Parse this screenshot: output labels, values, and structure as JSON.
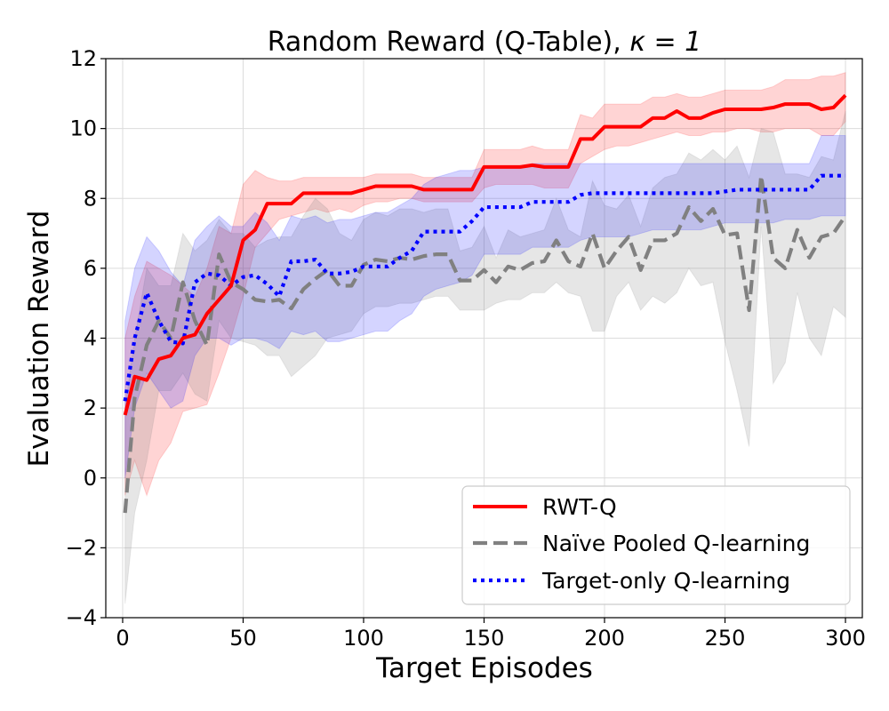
{
  "chart_data": {
    "type": "line",
    "title": "Random Reward (Q-Table), ",
    "title_math": "κ = 1",
    "xlabel": "Target Episodes",
    "ylabel": "Evaluation Reward",
    "xlim": [
      -7,
      307
    ],
    "ylim": [
      -4,
      12
    ],
    "xticks": [
      0,
      50,
      100,
      150,
      200,
      250,
      300
    ],
    "yticks": [
      -4,
      -2,
      0,
      2,
      4,
      6,
      8,
      10,
      12
    ],
    "ytick_labels": [
      "−4",
      "−2",
      "0",
      "2",
      "4",
      "6",
      "8",
      "10",
      "12"
    ],
    "grid": true,
    "legend_position": "lower-right",
    "series": [
      {
        "name": "RWT-Q",
        "color": "#ff0000",
        "style": "solid",
        "x": [
          1,
          5,
          10,
          15,
          20,
          25,
          30,
          35,
          40,
          45,
          50,
          55,
          60,
          65,
          70,
          75,
          80,
          85,
          90,
          95,
          100,
          105,
          110,
          115,
          120,
          125,
          130,
          135,
          140,
          145,
          150,
          155,
          160,
          165,
          170,
          175,
          180,
          185,
          190,
          195,
          200,
          205,
          210,
          215,
          220,
          225,
          230,
          235,
          240,
          245,
          250,
          255,
          260,
          265,
          270,
          275,
          280,
          285,
          290,
          295,
          300
        ],
        "y": [
          1.8,
          2.9,
          2.8,
          3.4,
          3.5,
          4.0,
          4.1,
          4.7,
          5.1,
          5.5,
          6.8,
          7.1,
          7.85,
          7.85,
          7.85,
          8.15,
          8.15,
          8.15,
          8.15,
          8.15,
          8.25,
          8.35,
          8.35,
          8.35,
          8.35,
          8.25,
          8.25,
          8.25,
          8.25,
          8.25,
          8.9,
          8.9,
          8.9,
          8.9,
          8.95,
          8.9,
          8.9,
          8.9,
          9.7,
          9.7,
          10.05,
          10.05,
          10.05,
          10.05,
          10.3,
          10.3,
          10.5,
          10.3,
          10.3,
          10.45,
          10.55,
          10.55,
          10.55,
          10.55,
          10.6,
          10.7,
          10.7,
          10.7,
          10.55,
          10.6,
          10.95
        ],
        "lower": [
          -0.5,
          0.5,
          -0.5,
          0.5,
          1.0,
          1.9,
          2.0,
          2.1,
          3.0,
          4.0,
          5.2,
          6.6,
          7.0,
          7.4,
          7.5,
          7.6,
          7.7,
          7.6,
          7.7,
          7.6,
          7.8,
          7.9,
          7.9,
          8.0,
          8.0,
          7.9,
          7.9,
          7.9,
          7.9,
          7.9,
          8.3,
          8.4,
          8.4,
          8.4,
          8.4,
          8.3,
          8.3,
          8.3,
          9.0,
          9.2,
          9.4,
          9.5,
          9.5,
          9.6,
          9.7,
          9.8,
          9.9,
          9.8,
          9.8,
          9.9,
          9.9,
          10.0,
          10.0,
          9.9,
          9.9,
          10.0,
          10.0,
          10.0,
          9.8,
          9.8,
          10.2
        ],
        "upper": [
          4.0,
          5.2,
          6.2,
          6.0,
          5.8,
          5.5,
          5.2,
          6.0,
          7.2,
          7.0,
          8.4,
          8.8,
          8.6,
          8.5,
          8.5,
          8.6,
          8.6,
          8.6,
          8.6,
          8.6,
          8.6,
          8.7,
          8.7,
          8.7,
          8.7,
          8.6,
          8.6,
          8.6,
          8.6,
          8.6,
          9.4,
          9.4,
          9.4,
          9.4,
          9.5,
          9.4,
          9.4,
          9.4,
          10.4,
          10.3,
          10.7,
          10.7,
          10.7,
          10.7,
          10.9,
          10.9,
          11.0,
          10.9,
          10.9,
          11.0,
          11.1,
          11.1,
          11.1,
          11.1,
          11.2,
          11.4,
          11.4,
          11.4,
          11.5,
          11.5,
          11.6
        ]
      },
      {
        "name": "Naïve Pooled Q-learning",
        "color": "#808080",
        "style": "dashed",
        "x": [
          1,
          5,
          10,
          15,
          20,
          25,
          30,
          35,
          40,
          45,
          50,
          55,
          60,
          65,
          70,
          75,
          80,
          85,
          90,
          95,
          100,
          105,
          110,
          115,
          120,
          125,
          130,
          135,
          140,
          145,
          150,
          155,
          160,
          165,
          170,
          175,
          180,
          185,
          190,
          195,
          200,
          205,
          210,
          215,
          220,
          225,
          230,
          235,
          240,
          245,
          250,
          255,
          260,
          265,
          270,
          275,
          280,
          285,
          290,
          295,
          300
        ],
        "y": [
          -1.0,
          2.3,
          3.8,
          4.5,
          4.0,
          5.6,
          4.5,
          3.8,
          6.4,
          5.6,
          5.4,
          5.1,
          5.05,
          5.1,
          4.85,
          5.4,
          5.7,
          5.95,
          5.5,
          5.5,
          6.1,
          6.25,
          6.2,
          6.3,
          6.25,
          6.35,
          6.4,
          6.4,
          5.65,
          5.65,
          5.95,
          5.6,
          6.05,
          5.95,
          6.15,
          6.2,
          6.8,
          6.2,
          6.05,
          7.0,
          6.0,
          6.5,
          6.9,
          5.95,
          6.8,
          6.8,
          7.0,
          7.75,
          7.35,
          7.7,
          6.95,
          7.0,
          4.8,
          8.65,
          6.3,
          6.0,
          7.1,
          6.3,
          6.9,
          7.0,
          7.5
        ],
        "lower": [
          -3.6,
          -1.0,
          0.5,
          2.5,
          2.5,
          3.0,
          2.4,
          2.2,
          4.5,
          4.0,
          3.9,
          3.8,
          3.5,
          3.5,
          2.9,
          3.2,
          3.5,
          4.0,
          4.1,
          4.2,
          4.7,
          4.9,
          4.9,
          5.0,
          5.0,
          5.1,
          5.2,
          5.2,
          4.8,
          4.8,
          4.8,
          5.0,
          5.1,
          5.1,
          5.3,
          5.3,
          5.6,
          5.3,
          5.2,
          4.2,
          4.2,
          5.2,
          5.6,
          4.8,
          5.2,
          5.0,
          5.3,
          6.0,
          5.5,
          5.6,
          3.9,
          2.5,
          0.9,
          7.2,
          2.7,
          3.3,
          5.3,
          4.0,
          3.5,
          4.9,
          4.6
        ],
        "upper": [
          2.0,
          4.0,
          6.0,
          5.5,
          5.5,
          7.0,
          6.5,
          6.8,
          7.4,
          7.0,
          7.0,
          6.6,
          6.8,
          6.9,
          6.9,
          7.5,
          8.0,
          7.7,
          7.0,
          6.8,
          7.4,
          7.6,
          7.5,
          7.7,
          7.7,
          7.6,
          7.7,
          7.7,
          6.5,
          6.6,
          7.2,
          6.3,
          7.1,
          6.9,
          7.0,
          7.1,
          8.0,
          7.1,
          6.9,
          8.5,
          7.8,
          7.7,
          8.1,
          7.2,
          8.3,
          8.6,
          8.7,
          9.3,
          9.1,
          9.4,
          9.1,
          9.5,
          8.6,
          10.0,
          9.9,
          8.7,
          8.7,
          8.6,
          9.2,
          9.1,
          10.5
        ]
      },
      {
        "name": "Target-only Q-learning",
        "color": "#0000ff",
        "style": "dotted",
        "x": [
          1,
          5,
          10,
          15,
          20,
          25,
          30,
          35,
          40,
          45,
          50,
          55,
          60,
          65,
          70,
          75,
          80,
          85,
          90,
          95,
          100,
          105,
          110,
          115,
          120,
          125,
          130,
          135,
          140,
          145,
          150,
          155,
          160,
          165,
          170,
          175,
          180,
          185,
          190,
          195,
          200,
          205,
          210,
          215,
          220,
          225,
          230,
          235,
          240,
          245,
          250,
          255,
          260,
          265,
          270,
          275,
          280,
          285,
          290,
          295,
          300
        ],
        "y": [
          2.2,
          4.0,
          5.3,
          4.5,
          3.9,
          3.85,
          5.6,
          5.85,
          5.8,
          5.5,
          5.75,
          5.8,
          5.55,
          5.2,
          6.2,
          6.2,
          6.25,
          5.85,
          5.85,
          5.9,
          6.05,
          6.05,
          6.05,
          6.3,
          6.5,
          7.05,
          7.05,
          7.05,
          7.05,
          7.35,
          7.75,
          7.75,
          7.75,
          7.75,
          7.9,
          7.9,
          7.9,
          7.9,
          8.1,
          8.15,
          8.15,
          8.15,
          8.15,
          8.15,
          8.15,
          8.15,
          8.15,
          8.15,
          8.15,
          8.15,
          8.2,
          8.25,
          8.25,
          8.25,
          8.25,
          8.25,
          8.25,
          8.25,
          8.65,
          8.65,
          8.65
        ],
        "lower": [
          0.0,
          2.0,
          3.0,
          2.5,
          2.0,
          2.2,
          3.5,
          4.0,
          4.0,
          3.8,
          4.0,
          4.0,
          3.9,
          3.7,
          4.2,
          4.1,
          4.2,
          3.9,
          3.9,
          4.0,
          4.1,
          4.2,
          4.2,
          4.5,
          4.7,
          5.2,
          5.4,
          5.5,
          5.6,
          5.8,
          6.4,
          6.4,
          6.4,
          6.4,
          6.6,
          6.6,
          6.6,
          6.6,
          6.8,
          6.9,
          6.9,
          6.9,
          6.9,
          7.0,
          7.1,
          7.1,
          7.1,
          7.1,
          7.1,
          7.2,
          7.3,
          7.3,
          7.3,
          7.3,
          7.3,
          7.4,
          7.4,
          7.4,
          7.5,
          7.5,
          7.5
        ],
        "upper": [
          4.5,
          6.0,
          6.9,
          6.5,
          5.9,
          5.5,
          6.8,
          7.2,
          7.5,
          7.2,
          7.2,
          7.6,
          7.3,
          6.8,
          7.5,
          7.4,
          7.5,
          7.3,
          7.4,
          7.4,
          7.5,
          7.6,
          7.6,
          7.8,
          8.0,
          8.4,
          8.6,
          8.7,
          8.8,
          8.8,
          8.9,
          8.9,
          8.9,
          8.9,
          9.0,
          9.0,
          9.0,
          9.0,
          9.0,
          9.0,
          9.0,
          9.0,
          9.0,
          9.0,
          9.0,
          9.0,
          9.0,
          9.0,
          9.0,
          9.0,
          9.0,
          9.0,
          9.0,
          9.0,
          9.0,
          9.0,
          9.0,
          9.0,
          9.8,
          9.8,
          9.8
        ]
      }
    ]
  }
}
